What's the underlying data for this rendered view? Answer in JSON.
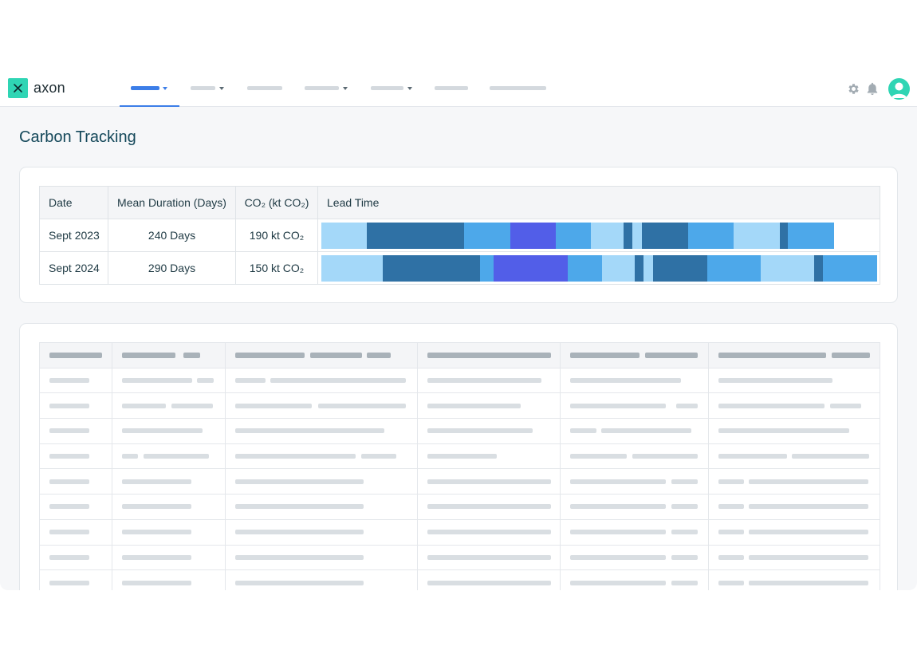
{
  "app": {
    "brand": "axon",
    "accent_color": "#3c7ee8",
    "logo_color": "#2fd5b4",
    "icons": [
      "logo-x-icon",
      "gear-icon",
      "bell-icon",
      "user-avatar-icon"
    ]
  },
  "page": {
    "title": "Carbon Tracking"
  },
  "carbon_table": {
    "columns": [
      "Date",
      "Mean Duration (Days)",
      "CO₂ (kt CO₂)",
      "Lead Time"
    ],
    "rows": [
      {
        "date": "Sept 2023",
        "duration": "240 Days",
        "co2": "190 kt CO₂"
      },
      {
        "date": "Sept 2024",
        "duration": "290 Days",
        "co2": "150 kt CO₂"
      }
    ],
    "lead_time_colors": {
      "light": "#a4d8f9",
      "dark": "#2f71a5",
      "mid": "#4da8ea",
      "indigo": "#525ee8"
    }
  }
}
